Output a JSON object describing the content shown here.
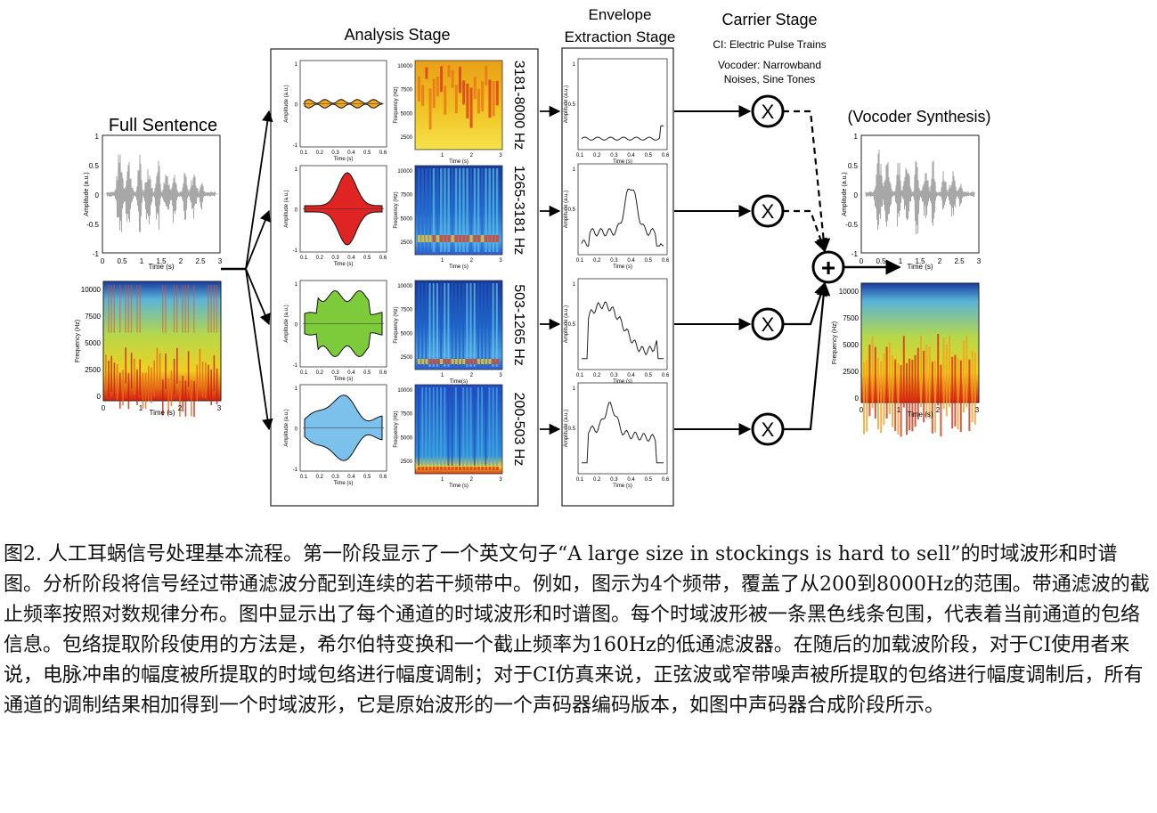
{
  "figure": {
    "stage_titles": {
      "full": "Full Sentence",
      "analysis": "Analysis Stage",
      "envelope_1": "Envelope",
      "envelope_2": "Extraction Stage",
      "carrier": "Carrier Stage",
      "synthesis": "(Vocoder Synthesis)"
    },
    "carrier_notes": [
      "CI: Electric Pulse Trains",
      "Vocoder: Narrowband",
      "Noises, Sine Tones"
    ],
    "bands": [
      "3181-8000 Hz",
      "1265-3181 Hz",
      "503-1265 Hz",
      "200-503 Hz"
    ],
    "band_colors": [
      "#f2a81a",
      "#e02424",
      "#7dcb3a",
      "#7cc0ec"
    ],
    "axes": {
      "amplitude": "Amplitude (a.u.)",
      "frequency": "Frequency (Hz)",
      "time": "Time (s)",
      "time_alt": "Time(s)"
    },
    "ticks": {
      "full_time": [
        "0",
        "0.5",
        "1",
        "1.5",
        "2",
        "2.5",
        "3"
      ],
      "full_amp": [
        "1",
        "0.5",
        "0",
        "-0.5",
        "-1"
      ],
      "full_freq": [
        "10000",
        "7500",
        "5000",
        "2500",
        "0"
      ],
      "spec_time": [
        "1",
        "2",
        "3"
      ],
      "band_time": [
        "0.1",
        "0.2",
        "0.3",
        "0.4",
        "0.5",
        "0.6"
      ],
      "band_amp": [
        "1",
        "0",
        "-1"
      ],
      "band_freq": [
        "10000",
        "7500",
        "5000",
        "2500"
      ],
      "env_amp": [
        "1",
        "0.5"
      ]
    },
    "symbols": {
      "multiply": "X",
      "add": "+"
    }
  },
  "caption": "图2. 人工耳蜗信号处理基本流程。第一阶段显示了一个英文句子“A large size in stockings is hard to sell”的时域波形和时谱图。分析阶段将信号经过带通滤波分配到连续的若干频带中。例如，图示为4个频带，覆盖了从200到8000Hz的范围。带通滤波的截止频率按照对数规律分布。图中显示出了每个通道的时域波形和时谱图。每个时域波形被一条黑色线条包围，代表着当前通道的包络信息。包络提取阶段使用的方法是，希尔伯特变换和一个截止频率为160Hz的低通滤波器。在随后的加载波阶段，对于CI使用者来说，电脉冲串的幅度被所提取的时域包络进行幅度调制；对于CI仿真来说，正弦波或窄带噪声被所提取的包络进行幅度调制后，所有通道的调制结果相加得到一个时域波形，它是原始波形的一个声码器编码版本，如图中声码器合成阶段所示。"
}
